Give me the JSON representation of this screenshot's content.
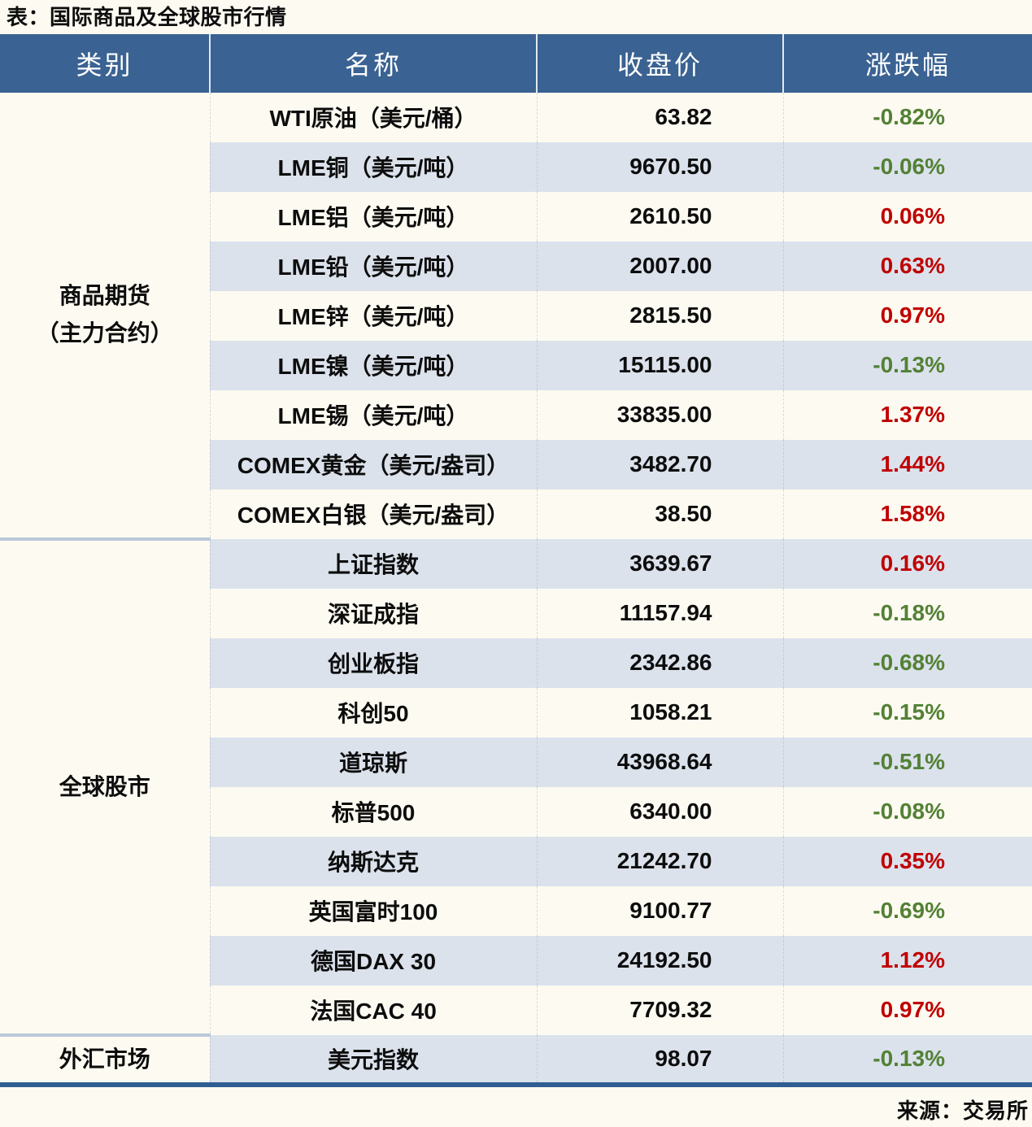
{
  "title": "表：国际商品及全球股市行情",
  "source": "来源：交易所",
  "colors": {
    "page_bg": "#fdfbf1",
    "header_bg": "#3a6292",
    "header_text": "#ffffff",
    "row_alt_bg": "#dbe2ec",
    "up_red": "#c00000",
    "down_green": "#538135",
    "section_divider": "#bac8d9",
    "table_bottom_border": "#2f5e92"
  },
  "table": {
    "headers": [
      "类别",
      "名称",
      "收盘价",
      "涨跌幅"
    ],
    "categories": [
      {
        "label_lines": [
          "商品期货",
          "（主力合约）"
        ],
        "rows": [
          {
            "name": "WTI原油（美元/桶）",
            "close": "63.82",
            "change": "-0.82%",
            "direction": "down"
          },
          {
            "name": "LME铜（美元/吨）",
            "close": "9670.50",
            "change": "-0.06%",
            "direction": "down"
          },
          {
            "name": "LME铝（美元/吨）",
            "close": "2610.50",
            "change": "0.06%",
            "direction": "up"
          },
          {
            "name": "LME铅（美元/吨）",
            "close": "2007.00",
            "change": "0.63%",
            "direction": "up"
          },
          {
            "name": "LME锌（美元/吨）",
            "close": "2815.50",
            "change": "0.97%",
            "direction": "up"
          },
          {
            "name": "LME镍（美元/吨）",
            "close": "15115.00",
            "change": "-0.13%",
            "direction": "down"
          },
          {
            "name": "LME锡（美元/吨）",
            "close": "33835.00",
            "change": "1.37%",
            "direction": "up"
          },
          {
            "name": "COMEX黄金（美元/盎司）",
            "close": "3482.70",
            "change": "1.44%",
            "direction": "up"
          },
          {
            "name": "COMEX白银（美元/盎司）",
            "close": "38.50",
            "change": "1.58%",
            "direction": "up"
          }
        ]
      },
      {
        "label_lines": [
          "全球股市"
        ],
        "rows": [
          {
            "name": "上证指数",
            "close": "3639.67",
            "change": "0.16%",
            "direction": "up"
          },
          {
            "name": "深证成指",
            "close": "11157.94",
            "change": "-0.18%",
            "direction": "down"
          },
          {
            "name": "创业板指",
            "close": "2342.86",
            "change": "-0.68%",
            "direction": "down"
          },
          {
            "name": "科创50",
            "close": "1058.21",
            "change": "-0.15%",
            "direction": "down"
          },
          {
            "name": "道琼斯",
            "close": "43968.64",
            "change": "-0.51%",
            "direction": "down"
          },
          {
            "name": "标普500",
            "close": "6340.00",
            "change": "-0.08%",
            "direction": "down"
          },
          {
            "name": "纳斯达克",
            "close": "21242.70",
            "change": "0.35%",
            "direction": "up"
          },
          {
            "name": "英国富时100",
            "close": "9100.77",
            "change": "-0.69%",
            "direction": "down"
          },
          {
            "name": "德国DAX 30",
            "close": "24192.50",
            "change": "1.12%",
            "direction": "up"
          },
          {
            "name": "法国CAC 40",
            "close": "7709.32",
            "change": "0.97%",
            "direction": "up"
          }
        ]
      },
      {
        "label_lines": [
          "外汇市场"
        ],
        "rows": [
          {
            "name": "美元指数",
            "close": "98.07",
            "change": "-0.13%",
            "direction": "down"
          }
        ]
      }
    ]
  },
  "chart_data": {
    "type": "table",
    "title": "表：国际商品及全球股市行情",
    "columns": [
      "类别",
      "名称",
      "收盘价",
      "涨跌幅"
    ],
    "rows": [
      [
        "商品期货（主力合约）",
        "WTI原油（美元/桶）",
        63.82,
        "-0.82%"
      ],
      [
        "商品期货（主力合约）",
        "LME铜（美元/吨）",
        9670.5,
        "-0.06%"
      ],
      [
        "商品期货（主力合约）",
        "LME铝（美元/吨）",
        2610.5,
        "0.06%"
      ],
      [
        "商品期货（主力合约）",
        "LME铅（美元/吨）",
        2007.0,
        "0.63%"
      ],
      [
        "商品期货（主力合约）",
        "LME锌（美元/吨）",
        2815.5,
        "0.97%"
      ],
      [
        "商品期货（主力合约）",
        "LME镍（美元/吨）",
        15115.0,
        "-0.13%"
      ],
      [
        "商品期货（主力合约）",
        "LME锡（美元/吨）",
        33835.0,
        "1.37%"
      ],
      [
        "商品期货（主力合约）",
        "COMEX黄金（美元/盎司）",
        3482.7,
        "1.44%"
      ],
      [
        "商品期货（主力合约）",
        "COMEX白银（美元/盎司）",
        38.5,
        "1.58%"
      ],
      [
        "全球股市",
        "上证指数",
        3639.67,
        "0.16%"
      ],
      [
        "全球股市",
        "深证成指",
        11157.94,
        "-0.18%"
      ],
      [
        "全球股市",
        "创业板指",
        2342.86,
        "-0.68%"
      ],
      [
        "全球股市",
        "科创50",
        1058.21,
        "-0.15%"
      ],
      [
        "全球股市",
        "道琼斯",
        43968.64,
        "-0.51%"
      ],
      [
        "全球股市",
        "标普500",
        6340.0,
        "-0.08%"
      ],
      [
        "全球股市",
        "纳斯达克",
        21242.7,
        "0.35%"
      ],
      [
        "全球股市",
        "英国富时100",
        9100.77,
        "-0.69%"
      ],
      [
        "全球股市",
        "德国DAX 30",
        24192.5,
        "1.12%"
      ],
      [
        "全球股市",
        "法国CAC 40",
        7709.32,
        "0.97%"
      ],
      [
        "外汇市场",
        "美元指数",
        98.07,
        "-0.13%"
      ]
    ],
    "legend": {
      "positive_change_color": "#c00000",
      "negative_change_color": "#538135"
    },
    "source": "来源：交易所"
  }
}
